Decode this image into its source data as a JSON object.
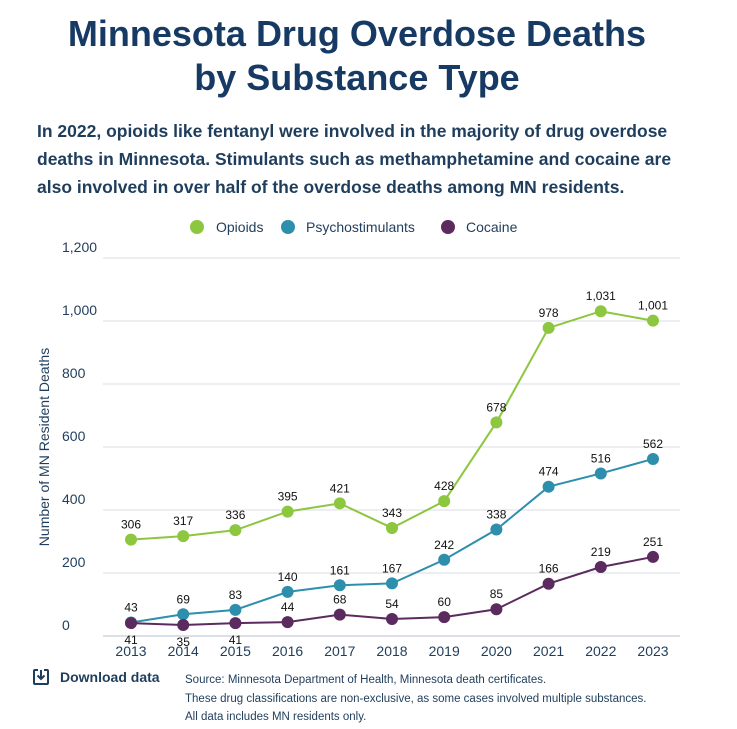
{
  "header": {
    "title_line1": "Minnesota Drug Overdose Deaths",
    "title_line2": "by Substance Type",
    "subtitle": "In 2022, opioids like fentanyl were involved in the majority of drug overdose deaths in Minnesota. Stimulants such as methamphetamine and cocaine are also involved in over half of the overdose deaths among MN residents."
  },
  "chart_data": {
    "type": "line",
    "title": "Minnesota Drug Overdose Deaths by Substance Type",
    "xlabel": "",
    "ylabel": "Number of MN Resident Deaths",
    "x": [
      "2013",
      "2014",
      "2015",
      "2016",
      "2017",
      "2018",
      "2019",
      "2020",
      "2021",
      "2022",
      "2023"
    ],
    "ylim": [
      0,
      1200
    ],
    "yticks": [
      0,
      200,
      400,
      600,
      800,
      1000,
      1200
    ],
    "ytick_labels": [
      "0",
      "200",
      "400",
      "600",
      "800",
      "1,000",
      "1,200"
    ],
    "grid": true,
    "legend_position": "top-center",
    "series": [
      {
        "name": "Opioids",
        "color": "#8dc63f",
        "values": [
          306,
          317,
          336,
          395,
          421,
          343,
          428,
          678,
          978,
          1031,
          1001
        ],
        "labels": [
          "306",
          "317",
          "336",
          "395",
          "421",
          "343",
          "428",
          "678",
          "978",
          "1,031",
          "1,001"
        ]
      },
      {
        "name": "Psychostimulants",
        "color": "#2e8fad",
        "values": [
          43,
          69,
          83,
          140,
          161,
          167,
          242,
          338,
          474,
          516,
          562
        ],
        "labels": [
          "43",
          "69",
          "83",
          "140",
          "161",
          "167",
          "242",
          "338",
          "474",
          "516",
          "562"
        ]
      },
      {
        "name": "Cocaine",
        "color": "#5b2a5e",
        "values": [
          41,
          35,
          41,
          44,
          68,
          54,
          60,
          85,
          166,
          219,
          251
        ],
        "labels": [
          "41",
          "35",
          "41",
          "44",
          "68",
          "54",
          "60",
          "85",
          "166",
          "219",
          "251"
        ]
      }
    ]
  },
  "footer": {
    "download_label": "Download data",
    "source_lines": [
      "Source: Minnesota Department of Health, Minnesota death certificates.",
      "These drug classifications are non-exclusive, as some cases involved multiple substances.",
      "All data includes MN residents only."
    ]
  }
}
